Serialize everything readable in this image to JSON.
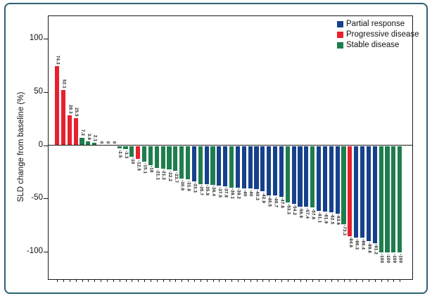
{
  "figure": {
    "frame_border_color": "#2b6373",
    "plot_border_color": "#1a1a1a",
    "background": "#ffffff"
  },
  "chart_data": {
    "type": "bar",
    "subtype": "waterfall",
    "title": "",
    "xlabel": "",
    "ylabel": "SLD change from baseline (%)",
    "ylim": [
      -126,
      122
    ],
    "y_ticks": [
      100,
      50,
      0,
      -50,
      -100
    ],
    "grid": false,
    "legend_position": "top-right",
    "legend": [
      {
        "label": "Partial response",
        "status": "PR"
      },
      {
        "label": "Progressive disease",
        "status": "PD"
      },
      {
        "label": "Stable disease",
        "status": "SD"
      }
    ],
    "status_names": {
      "PR": "Partial response",
      "PD": "Progressive disease",
      "SD": "Stable disease"
    },
    "status_colors": {
      "PR": "#16418c",
      "PD": "#e8202d",
      "SD": "#1e7d4c"
    },
    "bars": [
      {
        "label": "74.3",
        "v": 74.3,
        "s": "PD"
      },
      {
        "label": "52.1",
        "v": 52.1,
        "s": "PD"
      },
      {
        "label": "28.3",
        "v": 28.3,
        "s": "PD"
      },
      {
        "label": "25.5",
        "v": 25.5,
        "s": "PD"
      },
      {
        "label": "7.2",
        "v": 7.2,
        "s": "SD"
      },
      {
        "label": "3.6",
        "v": 3.6,
        "s": "SD"
      },
      {
        "label": "2.1",
        "v": 2.1,
        "s": "SD"
      },
      {
        "label": "0",
        "v": 0,
        "s": "SD"
      },
      {
        "label": "0",
        "v": 0,
        "s": "SD"
      },
      {
        "label": "0",
        "v": 0,
        "s": "SD"
      },
      {
        "label": "-2.5",
        "v": -2.5,
        "s": "SD"
      },
      {
        "label": "-3.3",
        "v": -3.3,
        "s": "SD"
      },
      {
        "label": "-10",
        "v": -10,
        "s": "SD"
      },
      {
        "label": "-12.5",
        "v": -12.5,
        "s": "PD"
      },
      {
        "label": "-15.1",
        "v": -15.1,
        "s": "SD"
      },
      {
        "label": "-18",
        "v": -18,
        "s": "SD"
      },
      {
        "label": "-21.1",
        "v": -21.1,
        "s": "SD"
      },
      {
        "label": "-21.2",
        "v": -21.2,
        "s": "SD"
      },
      {
        "label": "-22.2",
        "v": -22.2,
        "s": "SD"
      },
      {
        "label": "-23.7",
        "v": -23.7,
        "s": "SD"
      },
      {
        "label": "-30.9",
        "v": -30.9,
        "s": "SD"
      },
      {
        "label": "-31.6",
        "v": -31.6,
        "s": "SD"
      },
      {
        "label": "-33.3",
        "v": -33.3,
        "s": "PR"
      },
      {
        "label": "-35.7",
        "v": -35.7,
        "s": "SD"
      },
      {
        "label": "-35.9",
        "v": -35.9,
        "s": "PR"
      },
      {
        "label": "-36.4",
        "v": -36.4,
        "s": "SD"
      },
      {
        "label": "-37.5",
        "v": -37.5,
        "s": "PR"
      },
      {
        "label": "-37.8",
        "v": -37.8,
        "s": "PR"
      },
      {
        "label": "-39.1",
        "v": -39.1,
        "s": "SD"
      },
      {
        "label": "-39.2",
        "v": -39.2,
        "s": "PR"
      },
      {
        "label": "-40",
        "v": -40,
        "s": "PR"
      },
      {
        "label": "-40",
        "v": -40,
        "s": "PR"
      },
      {
        "label": "-40.3",
        "v": -40.3,
        "s": "PR"
      },
      {
        "label": "-42.9",
        "v": -42.9,
        "s": "PR"
      },
      {
        "label": "-46.5",
        "v": -46.5,
        "s": "PR"
      },
      {
        "label": "-46.7",
        "v": -46.7,
        "s": "PR"
      },
      {
        "label": "-47.6",
        "v": -47.6,
        "s": "PR"
      },
      {
        "label": "-53.3",
        "v": -53.3,
        "s": "SD"
      },
      {
        "label": "-54.2",
        "v": -54.2,
        "s": "PR"
      },
      {
        "label": "-56.9",
        "v": -56.9,
        "s": "PR"
      },
      {
        "label": "-57.4",
        "v": -57.4,
        "s": "PR"
      },
      {
        "label": "-57.9",
        "v": -57.9,
        "s": "SD"
      },
      {
        "label": "-61.1",
        "v": -61.1,
        "s": "PR"
      },
      {
        "label": "-61.9",
        "v": -61.9,
        "s": "PR"
      },
      {
        "label": "-62.5",
        "v": -62.5,
        "s": "PR"
      },
      {
        "label": "-63.6",
        "v": -63.6,
        "s": "PR"
      },
      {
        "label": "-73.3",
        "v": -73.3,
        "s": "SD"
      },
      {
        "label": "-84.6",
        "v": -84.6,
        "s": "PD"
      },
      {
        "label": "-86.3",
        "v": -86.3,
        "s": "PR"
      },
      {
        "label": "-86.4",
        "v": -86.4,
        "s": "PR"
      },
      {
        "label": "-89.6",
        "v": -89.6,
        "s": "PR"
      },
      {
        "label": "-91.2",
        "v": -91.2,
        "s": "PR"
      },
      {
        "label": "-100",
        "v": -100,
        "s": "SD"
      },
      {
        "label": "-100",
        "v": -100,
        "s": "SD"
      },
      {
        "label": "-100",
        "v": -100,
        "s": "SD"
      },
      {
        "label": "-100",
        "v": -100,
        "s": "SD"
      }
    ]
  }
}
